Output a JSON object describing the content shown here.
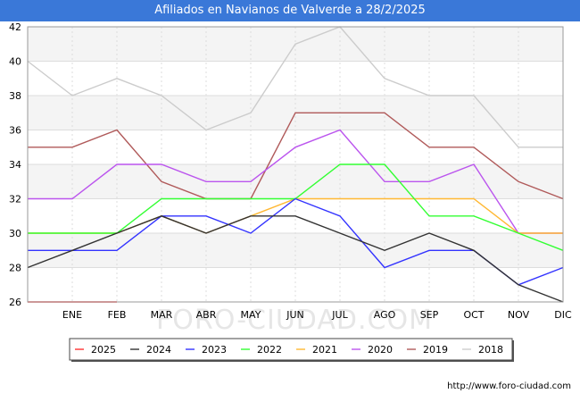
{
  "header": {
    "title": "Afiliados en Navianos de Valverde a 28/2/2025"
  },
  "footer": {
    "url": "http://www.foro-ciudad.com"
  },
  "watermark": "FORO-CIUDAD.COM",
  "chart_data": {
    "type": "line",
    "title": "Afiliados en Navianos de Valverde a 28/2/2025",
    "categories": [
      "",
      "ENE",
      "FEB",
      "MAR",
      "ABR",
      "MAY",
      "JUN",
      "JUL",
      "AGO",
      "SEP",
      "OCT",
      "NOV",
      "DIC"
    ],
    "ylim": [
      26,
      42
    ],
    "yticks": [
      26,
      28,
      30,
      32,
      34,
      36,
      38,
      40,
      42
    ],
    "grid": true,
    "legend_position": "bottom",
    "series": [
      {
        "name": "2025",
        "color": "#ff3333",
        "values": [
          26,
          26,
          26,
          null,
          null,
          null,
          null,
          null,
          null,
          null,
          null,
          null,
          null
        ]
      },
      {
        "name": "2024",
        "color": "#333333",
        "values": [
          28,
          29,
          30,
          31,
          30,
          31,
          31,
          30,
          29,
          30,
          29,
          27,
          26
        ]
      },
      {
        "name": "2023",
        "color": "#3333ff",
        "values": [
          29,
          29,
          29,
          31,
          31,
          30,
          32,
          31,
          28,
          29,
          29,
          27,
          28
        ]
      },
      {
        "name": "2022",
        "color": "#33ff33",
        "values": [
          30,
          30,
          30,
          32,
          32,
          32,
          32,
          34,
          34,
          31,
          31,
          30,
          29
        ]
      },
      {
        "name": "2021",
        "color": "#ffb833",
        "values": [
          30,
          30,
          30,
          31,
          30,
          31,
          32,
          32,
          32,
          32,
          32,
          30,
          30
        ]
      },
      {
        "name": "2020",
        "color": "#bb55ee",
        "values": [
          32,
          32,
          34,
          34,
          33,
          33,
          35,
          36,
          33,
          33,
          34,
          30,
          30
        ]
      },
      {
        "name": "2019",
        "color": "#b05a5a",
        "values": [
          35,
          35,
          36,
          33,
          32,
          32,
          37,
          37,
          37,
          35,
          35,
          33,
          32
        ]
      },
      {
        "name": "2018",
        "color": "#cccccc",
        "values": [
          40,
          38,
          39,
          38,
          36,
          37,
          41,
          42,
          39,
          38,
          38,
          35,
          35
        ]
      }
    ]
  }
}
